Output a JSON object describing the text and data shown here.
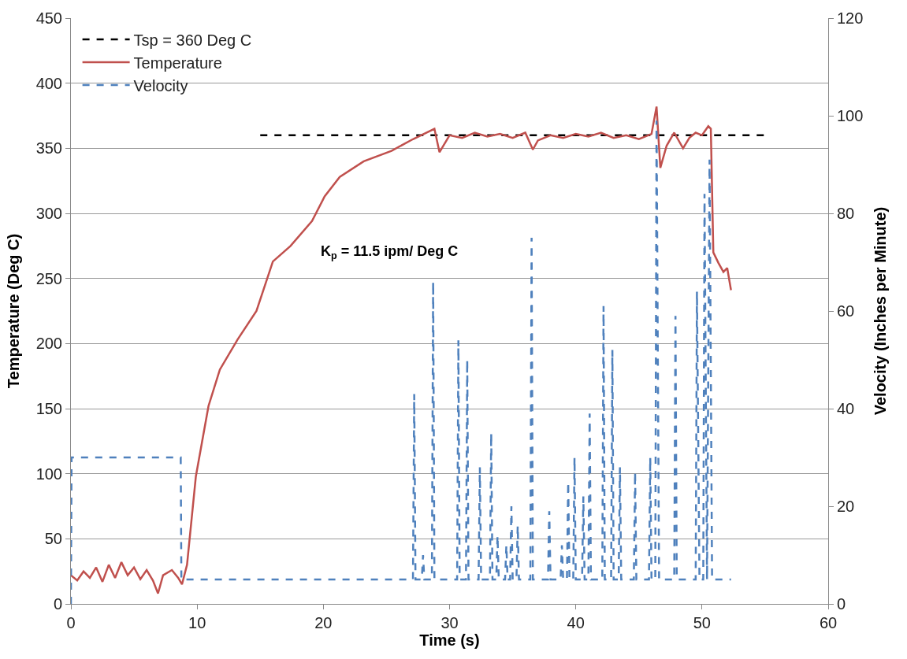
{
  "chart_data": {
    "type": "line",
    "xlabel": "Time (s)",
    "ylabel": "Temperature (Deg C)",
    "y2label": "Velocity (Inches per Minute)",
    "annotations": [
      "K$_{p}$ = 11.5 ipm/ Deg C"
    ],
    "xlim": [
      0,
      60
    ],
    "xticks": [
      0,
      10,
      20,
      30,
      40,
      50,
      60
    ],
    "ylim": [
      0,
      450
    ],
    "yticks": [
      0,
      50,
      100,
      150,
      200,
      250,
      300,
      350,
      400,
      450
    ],
    "y2lim": [
      0,
      120
    ],
    "y2ticks": [
      0,
      20,
      40,
      60,
      80,
      100,
      120
    ],
    "grid": "y",
    "legend": "top left",
    "marker": "none",
    "series": [
      {
        "name": "Tsp = 360 Deg C",
        "color": "#000000",
        "line_style": "dashed",
        "x": [
          15,
          55
        ],
        "values": [
          360,
          360
        ]
      },
      {
        "name": "Temperature",
        "color": "#c0504d",
        "line_style": "solid",
        "x": [
          0,
          0.5,
          1,
          1.5,
          2,
          2.5,
          3,
          3.5,
          4,
          4.5,
          5,
          5.5,
          6,
          6.5,
          6.9,
          7.3,
          8,
          8.5,
          8.8,
          9.2,
          9.9,
          10.9,
          11.8,
          13.2,
          14.7,
          16.0,
          17.4,
          19.1,
          20.1,
          21.3,
          23.2,
          25.4,
          27.1,
          28.8,
          29.2,
          30,
          31,
          32,
          33,
          34,
          35,
          36,
          36.6,
          37,
          38,
          39,
          40,
          41,
          42,
          43,
          44,
          45,
          46,
          46.4,
          46.7,
          47.2,
          47.8,
          48.5,
          49,
          49.5,
          50,
          50.5,
          50.7,
          50.9,
          51.3,
          51.7,
          52,
          52.3
        ],
        "values": [
          22,
          18,
          25,
          20,
          28,
          17,
          30,
          20,
          32,
          22,
          28,
          19,
          26,
          18,
          8,
          22,
          26,
          20,
          15,
          30,
          98,
          152,
          180,
          203,
          225,
          263,
          275,
          294,
          313,
          328,
          340,
          348,
          357,
          365,
          347,
          360,
          358,
          362,
          359,
          361,
          358,
          362,
          349,
          356,
          360,
          358,
          361,
          359,
          362,
          358,
          360,
          357,
          361,
          382,
          335,
          352,
          362,
          350,
          358,
          362,
          360,
          367,
          365,
          270,
          262,
          255,
          258,
          241
        ]
      },
      {
        "name": "Velocity",
        "color": "#4f81bd",
        "line_style": "dashed",
        "axis": "y2",
        "x": [
          0,
          0.05,
          8.7,
          8.75,
          27.1,
          27.2,
          27.3,
          27.8,
          27.9,
          28.0,
          28.6,
          28.7,
          28.8,
          30.6,
          30.7,
          30.8,
          31.3,
          31.4,
          31.5,
          32.3,
          32.4,
          32.5,
          33.2,
          33.3,
          33.4,
          33.7,
          33.8,
          33.9,
          34.4,
          34.5,
          34.6,
          34.8,
          34.9,
          35.0,
          35.3,
          35.4,
          35.5,
          36.4,
          36.5,
          36.6,
          37.8,
          37.9,
          38.0,
          38.8,
          38.9,
          39.0,
          39.3,
          39.4,
          39.5,
          39.8,
          39.9,
          40.0,
          40.5,
          40.6,
          40.7,
          41.0,
          41.1,
          41.2,
          42.1,
          42.2,
          42.3,
          42.8,
          42.9,
          43.0,
          43.4,
          43.5,
          43.6,
          44.6,
          44.7,
          44.8,
          45.8,
          45.9,
          46.0,
          46.3,
          46.4,
          46.6,
          47.8,
          47.9,
          48.0,
          49.5,
          49.6,
          49.8,
          50.1,
          50.2,
          50.4,
          50.6,
          50.8,
          52.3
        ],
        "values": [
          0,
          30,
          30,
          5,
          5,
          43,
          5,
          5,
          10,
          5,
          5,
          66,
          5,
          5,
          54,
          5,
          5,
          50,
          5,
          5,
          28,
          5,
          5,
          35,
          5,
          5,
          14,
          5,
          5,
          12,
          5,
          5,
          20,
          5,
          5,
          16,
          5,
          5,
          75,
          5,
          5,
          19,
          5,
          5,
          12,
          5,
          5,
          25,
          5,
          5,
          30,
          5,
          5,
          22,
          5,
          5,
          39,
          5,
          5,
          61,
          5,
          5,
          52,
          5,
          5,
          28,
          5,
          5,
          27,
          5,
          5,
          30,
          5,
          5,
          99,
          5,
          5,
          59,
          5,
          5,
          64,
          5,
          5,
          84,
          5,
          91,
          5,
          5
        ]
      }
    ]
  }
}
